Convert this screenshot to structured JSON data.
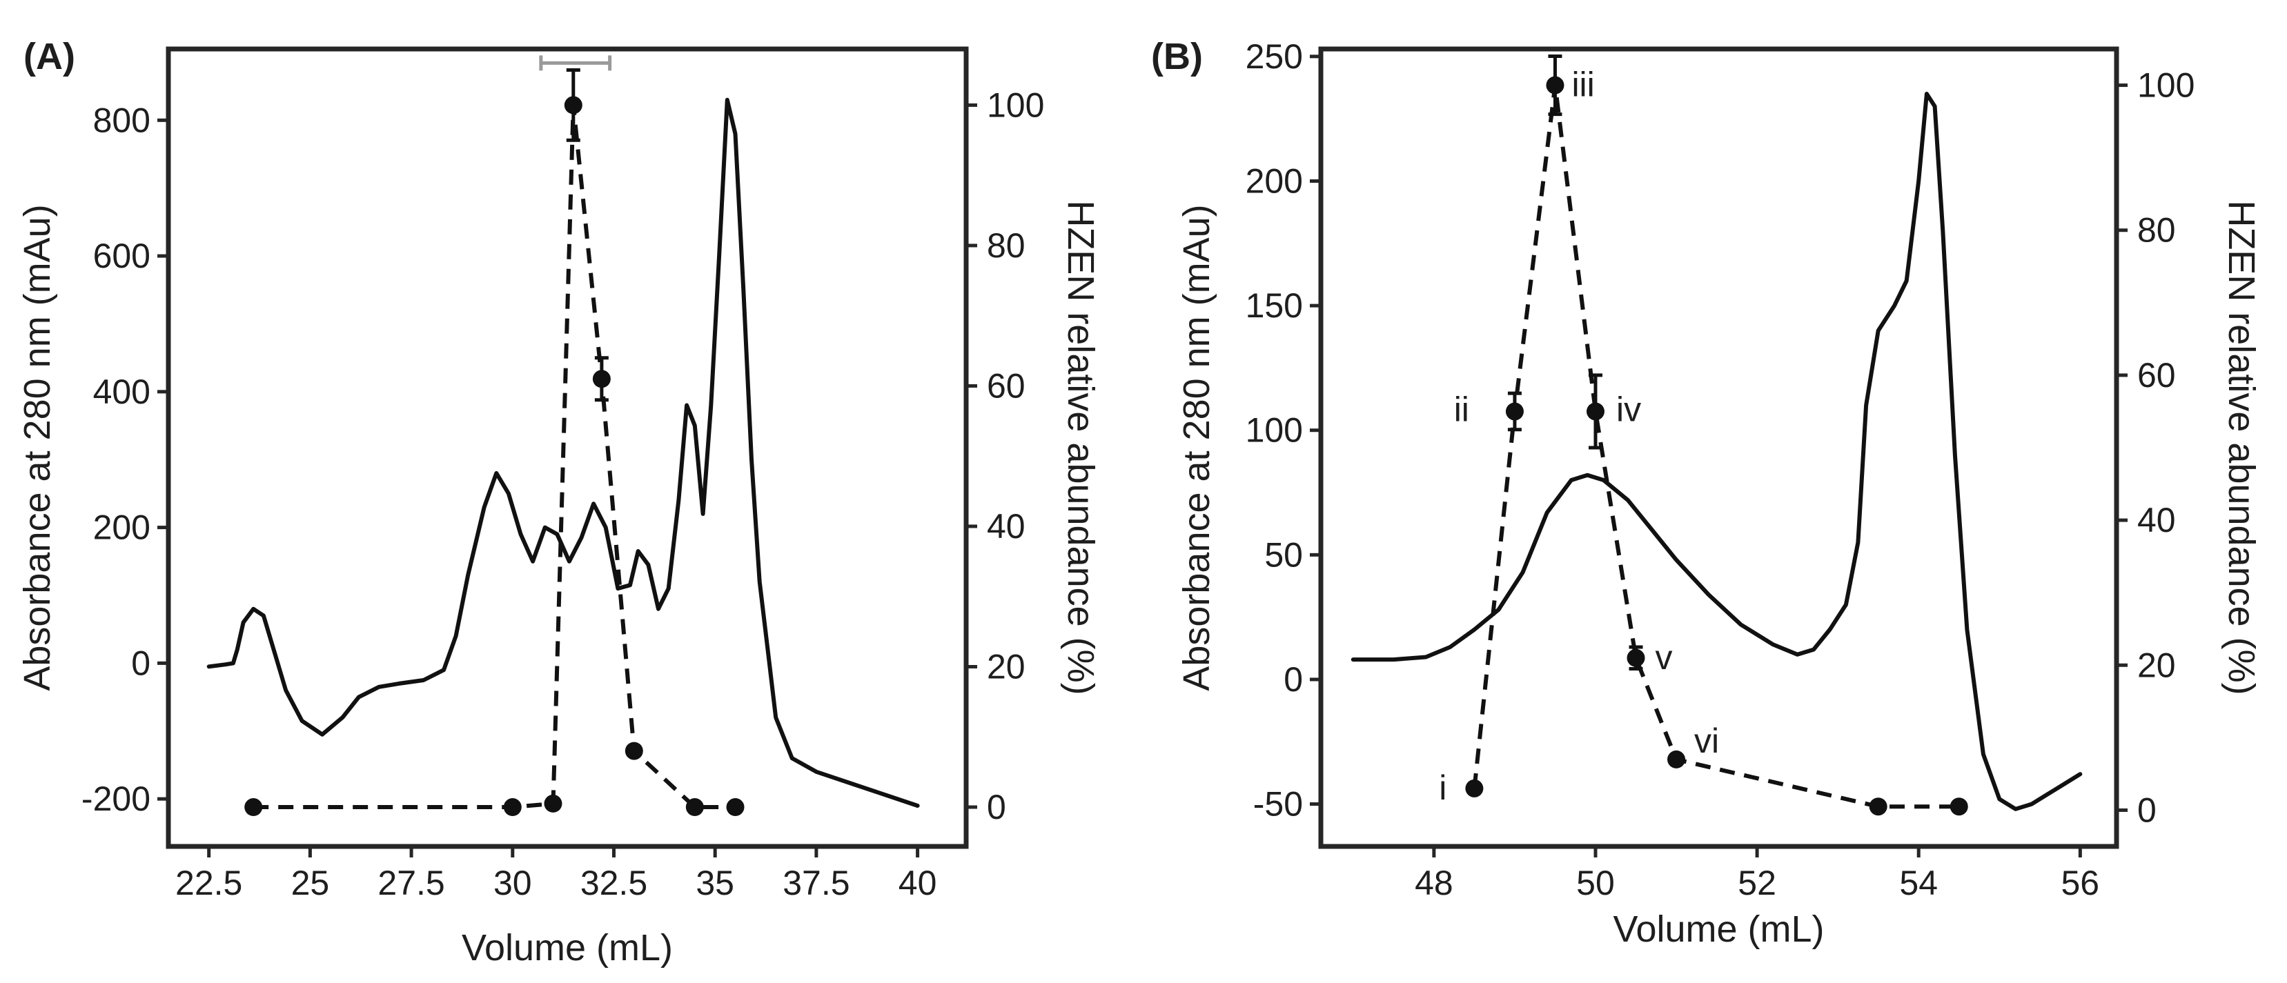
{
  "chart_data": [
    {
      "panel": "(A)",
      "type": "line",
      "xlabel": "Volume (mL)",
      "ylabel": "Absorbance at 280 nm (mAu)",
      "y2label": "HZEN relative abundance (%)",
      "xlim": [
        21.5,
        41.2
      ],
      "ylim": [
        -270,
        905
      ],
      "y2lim": [
        -5.6,
        108
      ],
      "xticks": [
        22.5,
        25,
        27.5,
        30,
        32.5,
        35,
        37.5,
        40
      ],
      "xtick_labels": [
        "22.5",
        "25",
        "27.5",
        "30",
        "32.5",
        "35",
        "37.5",
        "40"
      ],
      "yticks": [
        -200,
        0,
        200,
        400,
        600,
        800
      ],
      "ytick_labels": [
        "-200",
        "0",
        "200",
        "400",
        "600",
        "800"
      ],
      "y2ticks": [
        0,
        20,
        40,
        60,
        80,
        100
      ],
      "y2tick_labels": [
        "0",
        "20",
        "40",
        "60",
        "80",
        "100"
      ],
      "series": [
        {
          "name": "Absorbance at 280 nm",
          "style": "solid",
          "axis": "left",
          "x": [
            22.5,
            22.9,
            23.1,
            23.2,
            23.35,
            23.6,
            23.85,
            24.1,
            24.4,
            24.8,
            25.3,
            25.8,
            26.2,
            26.7,
            27.2,
            27.8,
            28.3,
            28.6,
            28.9,
            29.3,
            29.6,
            29.9,
            30.2,
            30.5,
            30.8,
            31.1,
            31.4,
            31.7,
            32.0,
            32.3,
            32.6,
            32.9,
            33.1,
            33.35,
            33.6,
            33.85,
            34.1,
            34.3,
            34.5,
            34.7,
            34.9,
            35.1,
            35.3,
            35.5,
            35.7,
            35.9,
            36.1,
            36.3,
            36.5,
            36.9,
            37.5,
            38.5,
            39.5,
            40.0
          ],
          "y": [
            -5,
            -2,
            0,
            20,
            60,
            80,
            70,
            20,
            -40,
            -85,
            -105,
            -80,
            -50,
            -35,
            -30,
            -25,
            -10,
            40,
            130,
            230,
            280,
            250,
            190,
            150,
            200,
            190,
            150,
            185,
            235,
            200,
            110,
            115,
            165,
            145,
            80,
            110,
            240,
            380,
            350,
            220,
            380,
            600,
            830,
            780,
            550,
            300,
            120,
            20,
            -80,
            -140,
            -160,
            -180,
            -200,
            -210
          ]
        },
        {
          "name": "HZEN relative abundance",
          "style": "dashed",
          "axis": "right",
          "x": [
            23.6,
            30.0,
            31.0,
            31.5,
            32.2,
            33.0,
            34.5,
            35.5
          ],
          "y": [
            0,
            0,
            0.5,
            100,
            61,
            8,
            0,
            0
          ],
          "yerr": [
            0,
            0,
            0,
            5,
            3,
            0.6,
            0,
            0
          ]
        }
      ],
      "annotations": [
        {
          "type": "bracket",
          "x_range": [
            30.7,
            32.4
          ],
          "y2": 106,
          "color": "#9a9a9a"
        }
      ]
    },
    {
      "panel": "(B)",
      "type": "line",
      "xlabel": "Volume (mL)",
      "ylabel": "Absorbance at 280 nm (mAu)",
      "y2label": "HZEN relative abundance (%)",
      "xlim": [
        46.6,
        56.45
      ],
      "ylim": [
        -67,
        253
      ],
      "y2lim": [
        -5,
        105
      ],
      "xticks": [
        48,
        50,
        52,
        54,
        56
      ],
      "xtick_labels": [
        "48",
        "50",
        "52",
        "54",
        "56"
      ],
      "yticks": [
        -50,
        0,
        50,
        100,
        150,
        200,
        250
      ],
      "ytick_labels": [
        "-50",
        "0",
        "50",
        "100",
        "150",
        "200",
        "250"
      ],
      "y2ticks": [
        0,
        20,
        40,
        60,
        80,
        100
      ],
      "y2tick_labels": [
        "0",
        "20",
        "40",
        "60",
        "80",
        "100"
      ],
      "series": [
        {
          "name": "Absorbance at 280 nm",
          "style": "solid",
          "axis": "left",
          "x": [
            47.0,
            47.5,
            47.9,
            48.2,
            48.5,
            48.8,
            49.1,
            49.4,
            49.7,
            49.9,
            50.1,
            50.4,
            50.7,
            51.0,
            51.4,
            51.8,
            52.2,
            52.5,
            52.7,
            52.9,
            53.1,
            53.25,
            53.35,
            53.5,
            53.7,
            53.85,
            54.0,
            54.1,
            54.2,
            54.3,
            54.45,
            54.6,
            54.8,
            55.0,
            55.2,
            55.4,
            55.6,
            55.8,
            56.0
          ],
          "y": [
            8,
            8,
            9,
            13,
            20,
            28,
            43,
            67,
            80,
            82,
            80,
            72,
            60,
            48,
            34,
            22,
            14,
            10,
            12,
            20,
            30,
            55,
            110,
            140,
            150,
            160,
            200,
            235,
            230,
            180,
            90,
            20,
            -30,
            -48,
            -52,
            -50,
            -46,
            -42,
            -38
          ]
        },
        {
          "name": "HZEN relative abundance",
          "style": "dashed",
          "axis": "right",
          "x": [
            48.5,
            49.0,
            49.5,
            50.0,
            50.5,
            51.0,
            53.5,
            54.5
          ],
          "y": [
            3,
            55,
            100,
            55,
            21,
            7,
            0.5,
            0.5
          ],
          "yerr": [
            0,
            2.5,
            4,
            5,
            1.5,
            0,
            0,
            0
          ],
          "labels": [
            "i",
            "ii",
            "iii",
            "iv",
            "v",
            "vi",
            "",
            ""
          ]
        }
      ]
    }
  ]
}
